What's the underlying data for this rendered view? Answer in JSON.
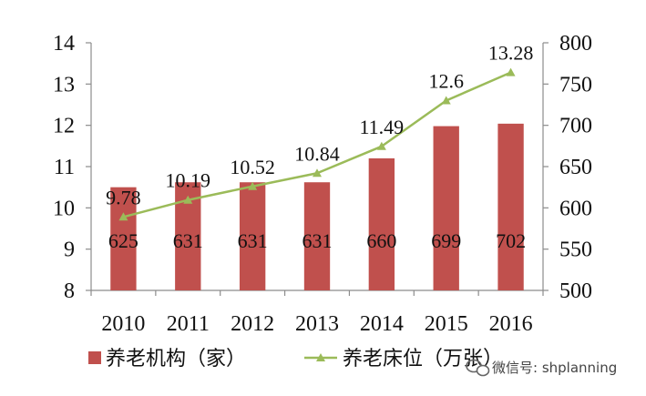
{
  "chart_data": {
    "type": "bar",
    "categories": [
      "2010",
      "2011",
      "2012",
      "2013",
      "2014",
      "2015",
      "2016"
    ],
    "series": [
      {
        "name": "养老机构（家）",
        "type": "bar",
        "axis": "right",
        "values": [
          625,
          631,
          631,
          631,
          660,
          699,
          702
        ],
        "labels": [
          "625",
          "631",
          "631",
          "631",
          "660",
          "699",
          "702"
        ],
        "color": "#c0504d"
      },
      {
        "name": "养老床位（万张）",
        "type": "line",
        "axis": "left",
        "values": [
          9.78,
          10.19,
          10.52,
          10.84,
          11.49,
          12.6,
          13.28
        ],
        "labels": [
          "9.78",
          "10.19",
          "10.52",
          "10.84",
          "11.49",
          "12.6",
          "13.28"
        ],
        "color": "#9bbb59"
      }
    ],
    "y_left": {
      "lim": [
        8,
        14
      ],
      "ticks": [
        "8",
        "9",
        "10",
        "11",
        "12",
        "13",
        "14"
      ]
    },
    "y_right": {
      "lim": [
        500,
        800
      ],
      "ticks": [
        "500",
        "550",
        "600",
        "650",
        "700",
        "750",
        "800"
      ]
    },
    "grid": false,
    "legend_position": "bottom"
  },
  "watermark": {
    "text": "微信号: shplanning",
    "icon": "wechat-icon"
  }
}
